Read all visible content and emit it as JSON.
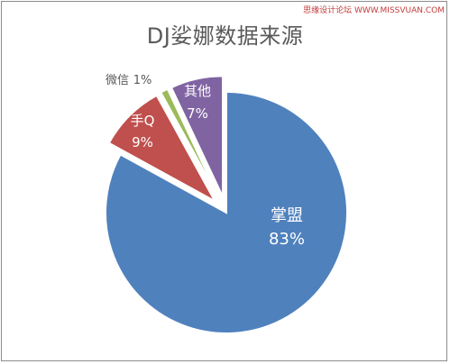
{
  "watermark": "思缘设计论坛 WWW.MISSVUAN.COM",
  "chart_data": {
    "type": "pie",
    "title": "DJ娑娜数据来源",
    "slices": [
      {
        "name": "掌盟",
        "value": 83,
        "label": "83%",
        "color": "#4f81bd",
        "exploded": false
      },
      {
        "name": "手Q",
        "value": 9,
        "label": "9%",
        "color": "#c0504d",
        "exploded": true
      },
      {
        "name": "微信",
        "value": 1,
        "label": "1%",
        "color": "#9bbb59",
        "exploded": true
      },
      {
        "name": "其他",
        "value": 7,
        "label": "7%",
        "color": "#8064a2",
        "exploded": true
      }
    ]
  }
}
